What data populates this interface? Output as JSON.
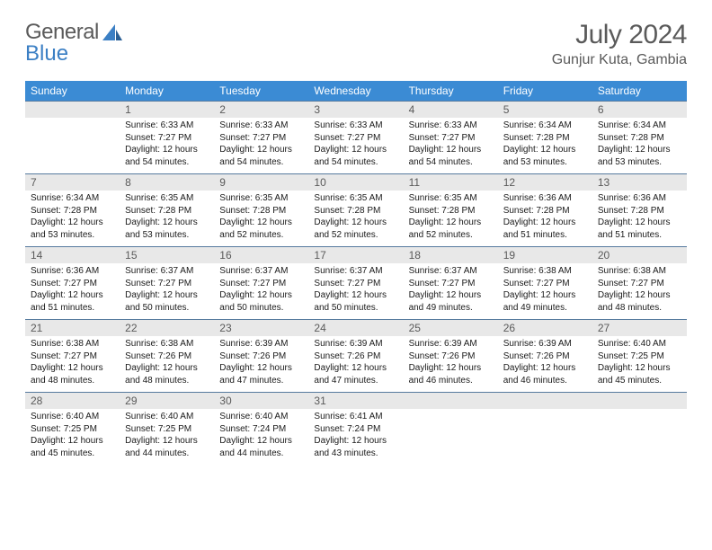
{
  "logo": {
    "word1": "General",
    "word2": "Blue"
  },
  "title": "July 2024",
  "location": "Gunjur Kuta, Gambia",
  "colors": {
    "header_bg": "#3b8bd4",
    "header_text": "#ffffff",
    "daynum_bg": "#e8e8e8",
    "daynum_text": "#5a5a5a",
    "border": "#567a9e",
    "page_bg": "#ffffff",
    "text": "#1a1a1a",
    "logo_gray": "#5a5a5a",
    "logo_blue": "#3b7fc4"
  },
  "dow": [
    "Sunday",
    "Monday",
    "Tuesday",
    "Wednesday",
    "Thursday",
    "Friday",
    "Saturday"
  ],
  "weeks": [
    {
      "nums": [
        "",
        "1",
        "2",
        "3",
        "4",
        "5",
        "6"
      ],
      "cells": [
        null,
        {
          "sr": "6:33 AM",
          "ss": "7:27 PM",
          "dl": "12 hours and 54 minutes."
        },
        {
          "sr": "6:33 AM",
          "ss": "7:27 PM",
          "dl": "12 hours and 54 minutes."
        },
        {
          "sr": "6:33 AM",
          "ss": "7:27 PM",
          "dl": "12 hours and 54 minutes."
        },
        {
          "sr": "6:33 AM",
          "ss": "7:27 PM",
          "dl": "12 hours and 54 minutes."
        },
        {
          "sr": "6:34 AM",
          "ss": "7:28 PM",
          "dl": "12 hours and 53 minutes."
        },
        {
          "sr": "6:34 AM",
          "ss": "7:28 PM",
          "dl": "12 hours and 53 minutes."
        }
      ]
    },
    {
      "nums": [
        "7",
        "8",
        "9",
        "10",
        "11",
        "12",
        "13"
      ],
      "cells": [
        {
          "sr": "6:34 AM",
          "ss": "7:28 PM",
          "dl": "12 hours and 53 minutes."
        },
        {
          "sr": "6:35 AM",
          "ss": "7:28 PM",
          "dl": "12 hours and 53 minutes."
        },
        {
          "sr": "6:35 AM",
          "ss": "7:28 PM",
          "dl": "12 hours and 52 minutes."
        },
        {
          "sr": "6:35 AM",
          "ss": "7:28 PM",
          "dl": "12 hours and 52 minutes."
        },
        {
          "sr": "6:35 AM",
          "ss": "7:28 PM",
          "dl": "12 hours and 52 minutes."
        },
        {
          "sr": "6:36 AM",
          "ss": "7:28 PM",
          "dl": "12 hours and 51 minutes."
        },
        {
          "sr": "6:36 AM",
          "ss": "7:28 PM",
          "dl": "12 hours and 51 minutes."
        }
      ]
    },
    {
      "nums": [
        "14",
        "15",
        "16",
        "17",
        "18",
        "19",
        "20"
      ],
      "cells": [
        {
          "sr": "6:36 AM",
          "ss": "7:27 PM",
          "dl": "12 hours and 51 minutes."
        },
        {
          "sr": "6:37 AM",
          "ss": "7:27 PM",
          "dl": "12 hours and 50 minutes."
        },
        {
          "sr": "6:37 AM",
          "ss": "7:27 PM",
          "dl": "12 hours and 50 minutes."
        },
        {
          "sr": "6:37 AM",
          "ss": "7:27 PM",
          "dl": "12 hours and 50 minutes."
        },
        {
          "sr": "6:37 AM",
          "ss": "7:27 PM",
          "dl": "12 hours and 49 minutes."
        },
        {
          "sr": "6:38 AM",
          "ss": "7:27 PM",
          "dl": "12 hours and 49 minutes."
        },
        {
          "sr": "6:38 AM",
          "ss": "7:27 PM",
          "dl": "12 hours and 48 minutes."
        }
      ]
    },
    {
      "nums": [
        "21",
        "22",
        "23",
        "24",
        "25",
        "26",
        "27"
      ],
      "cells": [
        {
          "sr": "6:38 AM",
          "ss": "7:27 PM",
          "dl": "12 hours and 48 minutes."
        },
        {
          "sr": "6:38 AM",
          "ss": "7:26 PM",
          "dl": "12 hours and 48 minutes."
        },
        {
          "sr": "6:39 AM",
          "ss": "7:26 PM",
          "dl": "12 hours and 47 minutes."
        },
        {
          "sr": "6:39 AM",
          "ss": "7:26 PM",
          "dl": "12 hours and 47 minutes."
        },
        {
          "sr": "6:39 AM",
          "ss": "7:26 PM",
          "dl": "12 hours and 46 minutes."
        },
        {
          "sr": "6:39 AM",
          "ss": "7:26 PM",
          "dl": "12 hours and 46 minutes."
        },
        {
          "sr": "6:40 AM",
          "ss": "7:25 PM",
          "dl": "12 hours and 45 minutes."
        }
      ]
    },
    {
      "nums": [
        "28",
        "29",
        "30",
        "31",
        "",
        "",
        ""
      ],
      "cells": [
        {
          "sr": "6:40 AM",
          "ss": "7:25 PM",
          "dl": "12 hours and 45 minutes."
        },
        {
          "sr": "6:40 AM",
          "ss": "7:25 PM",
          "dl": "12 hours and 44 minutes."
        },
        {
          "sr": "6:40 AM",
          "ss": "7:24 PM",
          "dl": "12 hours and 44 minutes."
        },
        {
          "sr": "6:41 AM",
          "ss": "7:24 PM",
          "dl": "12 hours and 43 minutes."
        },
        null,
        null,
        null
      ]
    }
  ],
  "labels": {
    "sunrise": "Sunrise:",
    "sunset": "Sunset:",
    "daylight": "Daylight:"
  }
}
